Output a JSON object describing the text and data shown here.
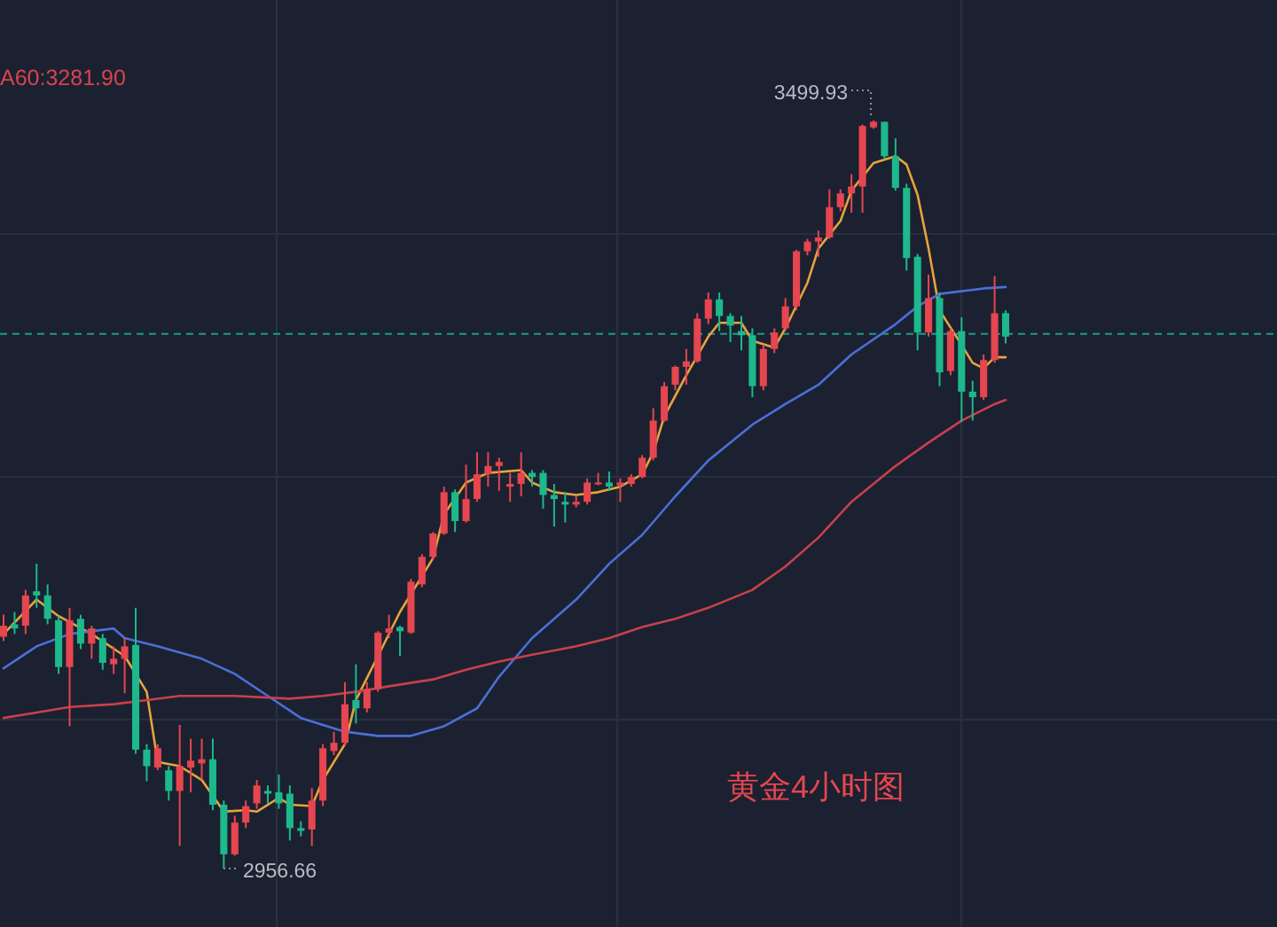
{
  "chart_data": {
    "type": "candlestick",
    "grid": true,
    "categories": [
      null,
      null,
      null,
      null,
      null,
      null,
      null,
      null,
      null,
      null,
      null,
      null,
      null,
      null,
      null,
      null,
      null,
      null,
      null,
      null,
      null,
      null,
      null,
      null,
      null,
      null,
      null,
      null,
      null,
      null,
      null,
      null,
      null,
      null,
      null,
      null,
      null,
      null,
      null,
      null,
      null,
      null,
      null,
      null,
      null,
      null,
      null,
      null,
      null,
      null,
      null,
      null,
      null,
      null,
      null,
      null,
      null,
      null,
      null,
      null,
      null,
      null,
      null,
      null,
      null,
      null,
      null,
      null,
      null,
      null,
      null,
      null,
      null,
      null,
      null,
      null,
      null,
      null,
      null,
      null,
      null,
      null,
      null,
      null,
      null,
      null,
      null,
      null,
      null,
      null,
      null,
      null
    ],
    "ohlc": [
      [
        3125,
        3141,
        3122,
        3133
      ],
      [
        3134,
        3143,
        3127,
        3131
      ],
      [
        3133,
        3159,
        3127,
        3155
      ],
      [
        3158,
        3178,
        3146,
        3155
      ],
      [
        3155,
        3163,
        3134,
        3138
      ],
      [
        3137,
        3140,
        3098,
        3103
      ],
      [
        3103,
        3146,
        3060,
        3137
      ],
      [
        3138,
        3141,
        3116,
        3120
      ],
      [
        3120,
        3133,
        3109,
        3131
      ],
      [
        3124,
        3127,
        3101,
        3106
      ],
      [
        3105,
        3118,
        3098,
        3109
      ],
      [
        3109,
        3124,
        3084,
        3118
      ],
      [
        3119,
        3146,
        3040,
        3043
      ],
      [
        3043,
        3047,
        3020,
        3031
      ],
      [
        3030,
        3047,
        3028,
        3044
      ],
      [
        3028,
        3031,
        3006,
        3013
      ],
      [
        3013,
        3061,
        2973,
        3031
      ],
      [
        3030,
        3051,
        3012,
        3035
      ],
      [
        3033,
        3051,
        3021,
        3036
      ],
      [
        3036,
        3051,
        2999,
        3003
      ],
      [
        3003,
        3006,
        2956.66,
        2967
      ],
      [
        2967,
        2995,
        2966,
        2990
      ],
      [
        2990,
        3006,
        2986,
        3002
      ],
      [
        3004,
        3021,
        3000,
        3017
      ],
      [
        3013,
        3017,
        3004,
        3011
      ],
      [
        3012,
        3025,
        3000,
        3004
      ],
      [
        3011,
        3017,
        2977,
        2986
      ],
      [
        2986,
        2991,
        2980,
        2984
      ],
      [
        2985,
        3015,
        2973,
        3006
      ],
      [
        3006,
        3047,
        3002,
        3044
      ],
      [
        3042,
        3056,
        3039,
        3048
      ],
      [
        3048,
        3092,
        3046,
        3076
      ],
      [
        3079,
        3105,
        3062,
        3073
      ],
      [
        3073,
        3092,
        3070,
        3087
      ],
      [
        3087,
        3129,
        3085,
        3128
      ],
      [
        3128,
        3141,
        3124,
        3131
      ],
      [
        3132,
        3133,
        3111,
        3129
      ],
      [
        3128,
        3167,
        3127,
        3165
      ],
      [
        3163,
        3185,
        3161,
        3183
      ],
      [
        3183,
        3201,
        3181,
        3200
      ],
      [
        3200,
        3234,
        3199,
        3230
      ],
      [
        3230,
        3232,
        3201,
        3209
      ],
      [
        3209,
        3250,
        3208,
        3225
      ],
      [
        3225,
        3259,
        3223,
        3243
      ],
      [
        3243,
        3259,
        3234,
        3249
      ],
      [
        3249,
        3255,
        3231,
        3252
      ],
      [
        3234,
        3244,
        3223,
        3236
      ],
      [
        3236,
        3259,
        3227,
        3244
      ],
      [
        3244,
        3246,
        3234,
        3241
      ],
      [
        3244,
        3246,
        3218,
        3228
      ],
      [
        3228,
        3236,
        3205,
        3225
      ],
      [
        3223,
        3230,
        3208,
        3221
      ],
      [
        3221,
        3227,
        3219,
        3223
      ],
      [
        3223,
        3240,
        3221,
        3237
      ],
      [
        3236,
        3244,
        3235,
        3237
      ],
      [
        3237,
        3245,
        3231,
        3234
      ],
      [
        3235,
        3240,
        3223,
        3237
      ],
      [
        3236,
        3243,
        3234,
        3241
      ],
      [
        3241,
        3257,
        3240,
        3255
      ],
      [
        3255,
        3291,
        3253,
        3282
      ],
      [
        3282,
        3310,
        3281,
        3307
      ],
      [
        3308,
        3322,
        3304,
        3321
      ],
      [
        3321,
        3334,
        3308,
        3325
      ],
      [
        3325,
        3360,
        3324,
        3356
      ],
      [
        3356,
        3375,
        3352,
        3370
      ],
      [
        3370,
        3375,
        3347,
        3358
      ],
      [
        3358,
        3360,
        3339,
        3351
      ],
      [
        3347,
        3358,
        3333,
        3344
      ],
      [
        3344,
        3349,
        3299,
        3307
      ],
      [
        3307,
        3337,
        3304,
        3334
      ],
      [
        3334,
        3349,
        3331,
        3346
      ],
      [
        3349,
        3371,
        3347,
        3365
      ],
      [
        3365,
        3406,
        3362,
        3405
      ],
      [
        3405,
        3414,
        3402,
        3412
      ],
      [
        3412,
        3420,
        3401,
        3415
      ],
      [
        3415,
        3450,
        3414,
        3437
      ],
      [
        3437,
        3450,
        3434,
        3447
      ],
      [
        3447,
        3461,
        3433,
        3452
      ],
      [
        3452,
        3497,
        3433,
        3496
      ],
      [
        3495,
        3499.93,
        3494,
        3499
      ],
      [
        3499,
        3499,
        3472,
        3474
      ],
      [
        3474,
        3487,
        3449,
        3451
      ],
      [
        3451,
        3454,
        3391,
        3400
      ],
      [
        3401,
        3403,
        3333,
        3346
      ],
      [
        3346,
        3388,
        3343,
        3371
      ],
      [
        3371,
        3375,
        3307,
        3317
      ],
      [
        3318,
        3349,
        3315,
        3347
      ],
      [
        3347,
        3357,
        3281,
        3303
      ],
      [
        3303,
        3311,
        3282,
        3299
      ],
      [
        3299,
        3330,
        3297,
        3326
      ],
      [
        3326,
        3387,
        3324,
        3360
      ],
      [
        3360,
        3362,
        3338,
        3343
      ]
    ],
    "series": [
      {
        "type": "line",
        "color": "#e8a33d",
        "values": [
          3127,
          null,
          null,
          3152,
          null,
          3140,
          null,
          null,
          3127,
          null,
          null,
          3111,
          null,
          3085,
          3034,
          null,
          3031,
          null,
          3021,
          null,
          2998,
          null,
          2999,
          2998,
          null,
          3008,
          3003,
          null,
          3002,
          3021,
          null,
          3047,
          3079,
          null,
          3111,
          null,
          3143,
          null,
          null,
          3182,
          3214,
          null,
          3237,
          null,
          3244,
          null,
          null,
          3246,
          3237,
          null,
          3230,
          null,
          3228,
          null,
          3230,
          null,
          3234,
          null,
          3243,
          3259,
          3285,
          null,
          3315,
          null,
          3343,
          3353,
          null,
          3353,
          3340,
          null,
          3335,
          3349,
          null,
          3382,
          3407,
          null,
          3427,
          3449,
          null,
          3469,
          null,
          3474,
          3468,
          3446,
          3407,
          3362,
          null,
          3337,
          3324,
          3320,
          3328,
          3328
        ]
      },
      {
        "type": "line",
        "color": "#4a6fd8",
        "values": [
          3102,
          null,
          null,
          3118,
          null,
          null,
          3127,
          null,
          null,
          null,
          3131,
          3124,
          null,
          null,
          3118,
          null,
          null,
          null,
          3109,
          null,
          null,
          3098,
          null,
          null,
          3082,
          null,
          null,
          3066,
          null,
          null,
          null,
          3056,
          null,
          null,
          3053,
          null,
          null,
          3053,
          null,
          null,
          3060,
          null,
          null,
          3073,
          null,
          3096,
          null,
          null,
          3124,
          null,
          null,
          null,
          3152,
          null,
          null,
          3178,
          null,
          null,
          3199,
          null,
          null,
          3227,
          null,
          null,
          3253,
          null,
          null,
          null,
          3279,
          null,
          null,
          3294,
          null,
          null,
          3308,
          null,
          null,
          3330,
          null,
          null,
          null,
          3352,
          null,
          3365,
          null,
          3374,
          null,
          null,
          null,
          3378,
          null,
          3379
        ]
      },
      {
        "type": "line",
        "color": "#c8404c",
        "values": [
          3066,
          null,
          null,
          3070,
          null,
          null,
          3074,
          null,
          null,
          null,
          3076,
          null,
          null,
          3079,
          null,
          null,
          3082,
          null,
          null,
          null,
          null,
          3082,
          null,
          null,
          null,
          null,
          3080,
          null,
          null,
          3082,
          null,
          null,
          3085,
          null,
          null,
          3089,
          null,
          null,
          null,
          3094,
          null,
          null,
          3101,
          null,
          null,
          3107,
          null,
          null,
          3112,
          null,
          null,
          null,
          3118,
          null,
          null,
          3124,
          null,
          null,
          3132,
          null,
          null,
          3138,
          null,
          null,
          3146,
          null,
          null,
          null,
          3159,
          null,
          null,
          3176,
          null,
          null,
          3197,
          null,
          null,
          3223,
          null,
          null,
          null,
          3249,
          null,
          null,
          3266,
          null,
          null,
          3282,
          null,
          null,
          3294,
          3297
        ]
      }
    ],
    "ref_lines": [
      {
        "axis": "y",
        "value": 3345,
        "color": "#1f9a86",
        "line_style": "dashed"
      }
    ],
    "annotations": [
      "A60:3281.90",
      "3499.93",
      "2956.66",
      "黄金4小时图"
    ]
  }
}
